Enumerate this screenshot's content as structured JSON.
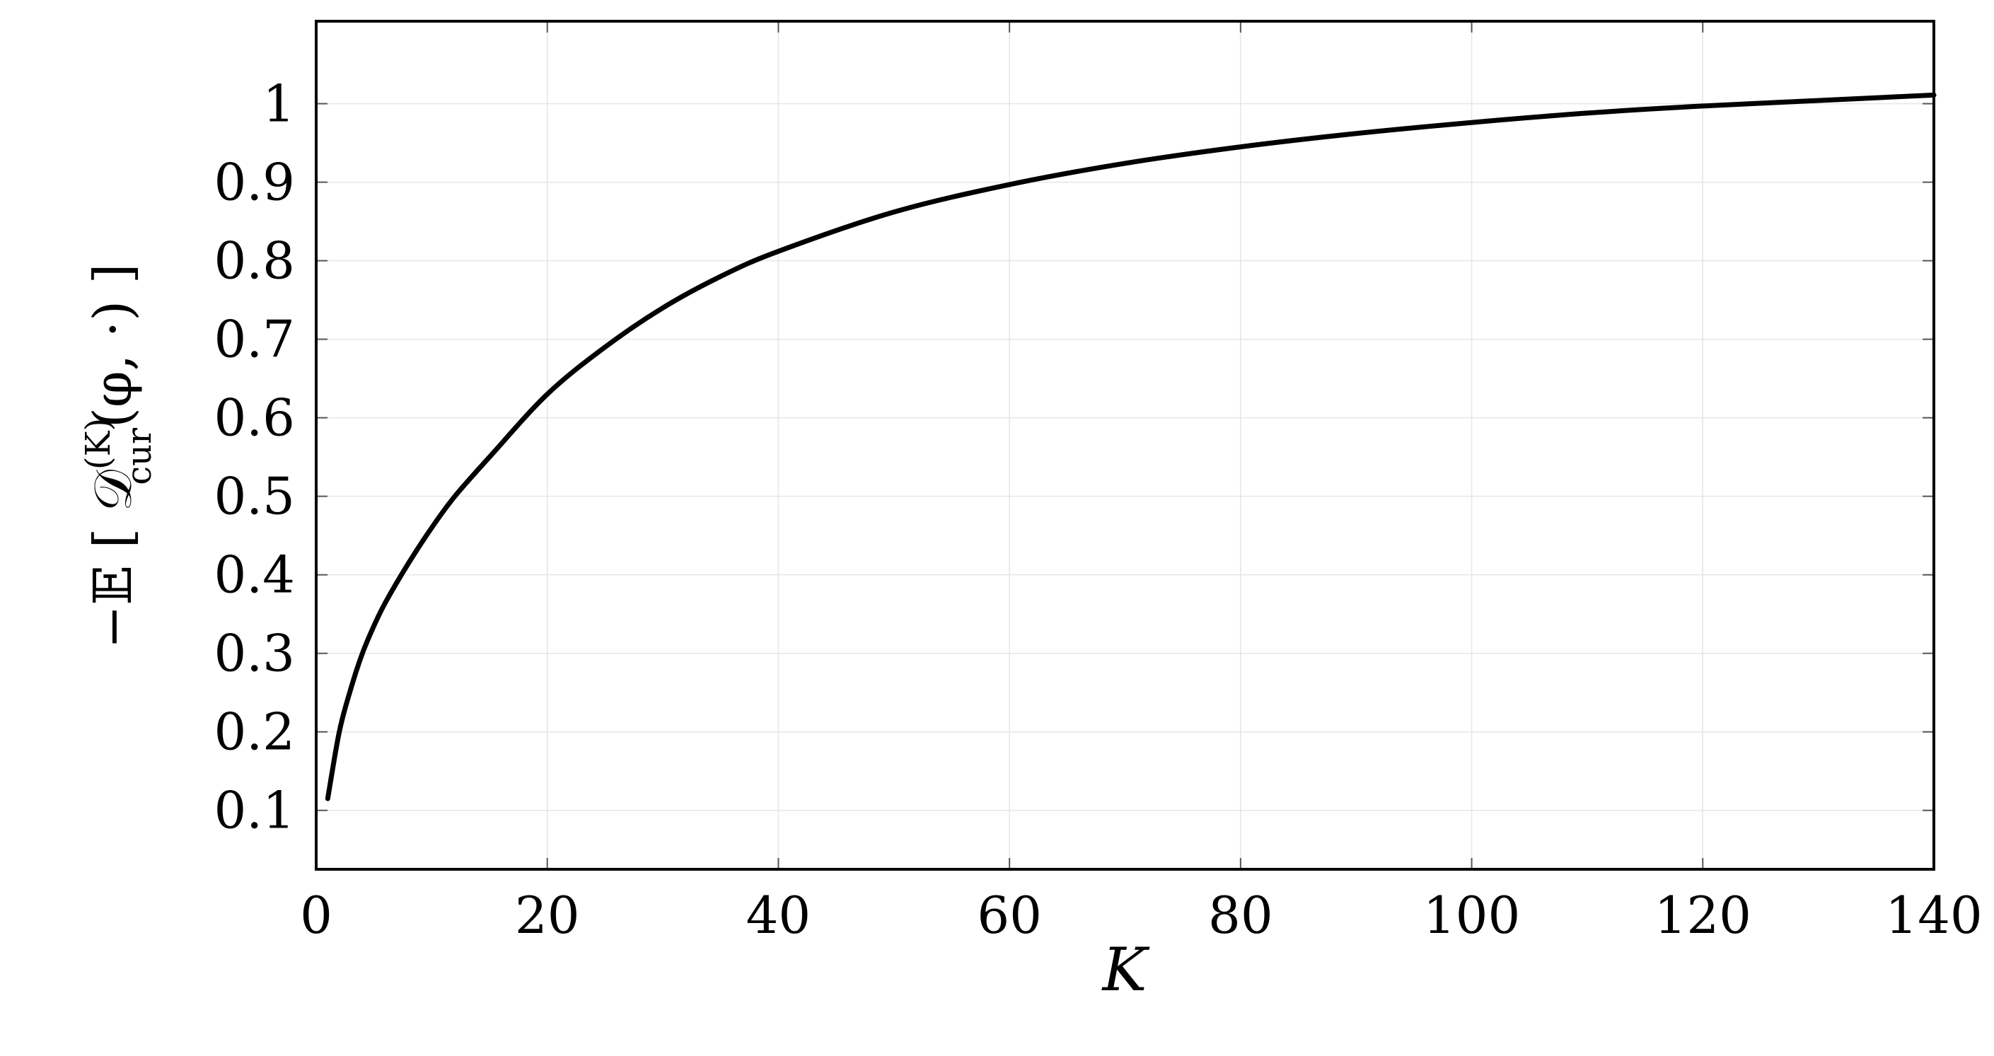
{
  "colors": {
    "line": "#000000",
    "grid": "#e6e6e6",
    "frame": "#000000"
  },
  "chart_data": {
    "type": "line",
    "title": "",
    "xlabel": "K",
    "ylabel_parts": {
      "prefix": "−𝔼",
      "symbol": "𝒟",
      "superscript": "(K)",
      "subscript": "cur",
      "args": "(φ, ·)"
    },
    "xlim": [
      0,
      140
    ],
    "ylim": [
      0.025,
      1.105
    ],
    "x_ticks": [
      0,
      20,
      40,
      60,
      80,
      100,
      120,
      140
    ],
    "y_ticks": [
      0.1,
      0.2,
      0.3,
      0.4,
      0.5,
      0.6,
      0.7,
      0.8,
      0.9,
      1
    ],
    "x_tick_labels": [
      "0",
      "20",
      "40",
      "60",
      "80",
      "100",
      "120",
      "140"
    ],
    "y_tick_labels": [
      "0.1",
      "0.2",
      "0.3",
      "0.4",
      "0.5",
      "0.6",
      "0.7",
      "0.8",
      "0.9",
      "1"
    ],
    "grid": true,
    "series": [
      {
        "x": [
          1,
          2,
          3,
          4,
          5,
          6,
          8,
          10,
          12,
          15,
          20,
          25,
          30,
          35,
          40,
          50,
          60,
          70,
          80,
          90,
          100,
          110,
          120,
          130,
          140
        ],
        "y": [
          0.115,
          0.2,
          0.255,
          0.3,
          0.335,
          0.365,
          0.415,
          0.46,
          0.5,
          0.55,
          0.63,
          0.69,
          0.74,
          0.78,
          0.812,
          0.862,
          0.897,
          0.924,
          0.945,
          0.962,
          0.976,
          0.988,
          0.997,
          1.004,
          1.011
        ]
      }
    ]
  }
}
